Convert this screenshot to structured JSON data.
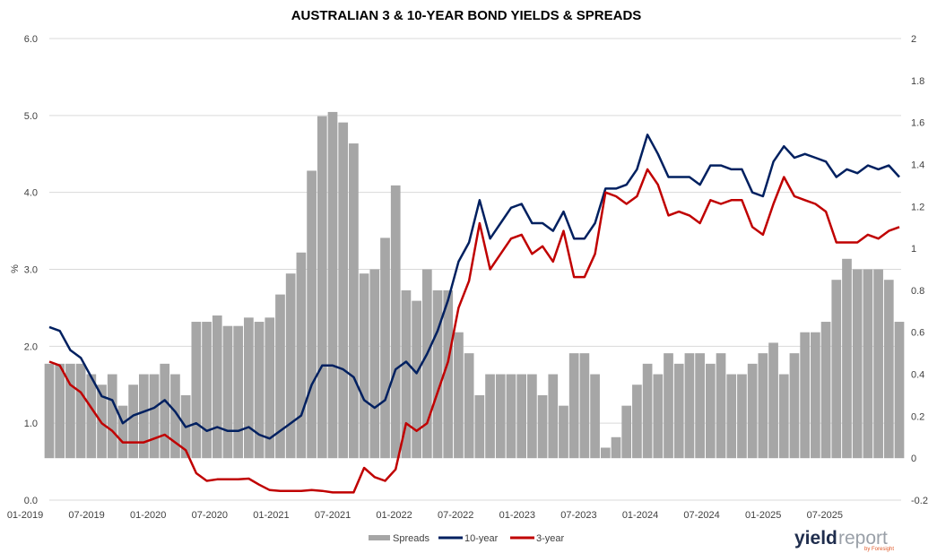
{
  "chart_data": {
    "type": "bar+line",
    "title": "AUSTRALIAN 3 & 10-YEAR BOND YIELDS & SPREADS",
    "ylabel": "%",
    "ylim": [
      0,
      6
    ],
    "y_ticks": [
      "0.0",
      "1.0",
      "2.0",
      "3.0",
      "4.0",
      "5.0",
      "6.0"
    ],
    "y2lim": [
      -0.2,
      2
    ],
    "y2_ticks": [
      "-0.2",
      "0",
      "0.2",
      "0.4",
      "0.6",
      "0.8",
      "1",
      "1.2",
      "1.4",
      "1.6",
      "1.8",
      "2"
    ],
    "x_ticks": [
      "01-2019",
      "07-2019",
      "01-2020",
      "07-2020",
      "01-2021",
      "07-2021",
      "01-2022",
      "07-2022",
      "01-2023",
      "07-2023",
      "01-2024",
      "07-2024",
      "01-2025",
      "07-2025"
    ],
    "x_start": "2019-01",
    "x_frequency": "monthly",
    "grid": "horizontal",
    "legend": "bottom",
    "series": [
      {
        "name": "Spreads",
        "type": "bar",
        "axis": "right",
        "color": "#a6a6a6",
        "values": [
          0.45,
          0.45,
          0.45,
          0.45,
          0.4,
          0.35,
          0.4,
          0.25,
          0.35,
          0.4,
          0.4,
          0.45,
          0.4,
          0.3,
          0.65,
          0.65,
          0.68,
          0.63,
          0.63,
          0.67,
          0.65,
          0.67,
          0.78,
          0.88,
          0.98,
          1.37,
          1.63,
          1.65,
          1.6,
          1.5,
          0.88,
          0.9,
          1.05,
          1.3,
          0.8,
          0.75,
          0.9,
          0.8,
          0.8,
          0.6,
          0.5,
          0.3,
          0.4,
          0.4,
          0.4,
          0.4,
          0.4,
          0.3,
          0.4,
          0.25,
          0.5,
          0.5,
          0.4,
          0.05,
          0.1,
          0.25,
          0.35,
          0.45,
          0.4,
          0.5,
          0.45,
          0.5,
          0.5,
          0.45,
          0.5,
          0.4,
          0.4,
          0.45,
          0.5,
          0.55,
          0.4,
          0.5,
          0.6,
          0.6,
          0.65,
          0.85,
          0.95,
          0.9,
          0.9,
          0.9,
          0.85,
          0.65
        ]
      },
      {
        "name": "10-year",
        "type": "line",
        "axis": "left",
        "color": "#002060",
        "values": [
          2.25,
          2.2,
          1.95,
          1.85,
          1.6,
          1.35,
          1.3,
          1.0,
          1.1,
          1.15,
          1.2,
          1.3,
          1.15,
          0.95,
          1.0,
          0.9,
          0.95,
          0.9,
          0.9,
          0.95,
          0.85,
          0.8,
          0.9,
          1.0,
          1.1,
          1.5,
          1.75,
          1.75,
          1.7,
          1.6,
          1.3,
          1.2,
          1.3,
          1.7,
          1.8,
          1.65,
          1.9,
          2.2,
          2.6,
          3.1,
          3.35,
          3.9,
          3.4,
          3.6,
          3.8,
          3.85,
          3.6,
          3.6,
          3.5,
          3.75,
          3.4,
          3.4,
          3.6,
          4.05,
          4.05,
          4.1,
          4.3,
          4.75,
          4.5,
          4.2,
          4.2,
          4.2,
          4.1,
          4.35,
          4.35,
          4.3,
          4.3,
          4.0,
          3.95,
          4.4,
          4.6,
          4.45,
          4.5,
          4.45,
          4.4,
          4.2,
          4.3,
          4.25,
          4.35,
          4.3,
          4.35,
          4.2
        ]
      },
      {
        "name": "3-year",
        "type": "line",
        "axis": "left",
        "color": "#c00000",
        "values": [
          1.8,
          1.75,
          1.5,
          1.4,
          1.2,
          1.0,
          0.9,
          0.75,
          0.75,
          0.75,
          0.8,
          0.85,
          0.75,
          0.65,
          0.35,
          0.25,
          0.27,
          0.27,
          0.27,
          0.28,
          0.2,
          0.13,
          0.12,
          0.12,
          0.12,
          0.13,
          0.12,
          0.1,
          0.1,
          0.1,
          0.42,
          0.3,
          0.25,
          0.4,
          1.0,
          0.9,
          1.0,
          1.4,
          1.8,
          2.5,
          2.85,
          3.6,
          3.0,
          3.2,
          3.4,
          3.45,
          3.2,
          3.3,
          3.1,
          3.5,
          2.9,
          2.9,
          3.2,
          4.0,
          3.95,
          3.85,
          3.95,
          4.3,
          4.1,
          3.7,
          3.75,
          3.7,
          3.6,
          3.9,
          3.85,
          3.9,
          3.9,
          3.55,
          3.45,
          3.85,
          4.2,
          3.95,
          3.9,
          3.85,
          3.75,
          3.35,
          3.35,
          3.35,
          3.45,
          3.4,
          3.5,
          3.55
        ]
      }
    ]
  },
  "logo": {
    "brand_bold": "yield",
    "brand_light": "report",
    "tagline": "by Foresight"
  }
}
